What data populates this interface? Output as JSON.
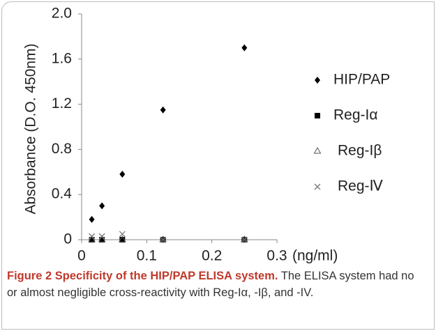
{
  "chart_data": {
    "type": "scatter",
    "y_label": "Absorbance  (D.O. 450nm)",
    "x_label": "(ng/ml)",
    "x": [
      0.015625,
      0.03125,
      0.0625,
      0.125,
      0.25
    ],
    "series": [
      {
        "name": "HIP/PAP",
        "color": "#000000",
        "marker": "diamond",
        "values": [
          0.18,
          0.3,
          0.58,
          1.15,
          1.7
        ]
      },
      {
        "name": "Reg-Iα",
        "color": "#000000",
        "marker": "square",
        "values": [
          0,
          0,
          0,
          0,
          0
        ]
      },
      {
        "name": "Reg-Iβ",
        "color": "#555555",
        "marker": "triangle",
        "values": [
          0,
          0,
          0,
          0,
          0
        ]
      },
      {
        "name": "Reg-Ⅳ",
        "color": "#777777",
        "marker": "x",
        "values": [
          0.03,
          0.03,
          0.05,
          0,
          0
        ]
      }
    ],
    "xlim": [
      0,
      0.3
    ],
    "ylim": [
      0,
      2
    ],
    "xticks": [
      0,
      0.1,
      0.2,
      0.3
    ],
    "yticks": [
      0,
      0.4,
      0.8,
      1.2,
      1.6,
      {
        "value": 2,
        "label": "2.0"
      }
    ]
  },
  "caption": {
    "label": "Figure 2 Specificity of the HIP/PAP ELISA system.",
    "text": "The ELISA system had no or almost negligible cross-reactivity with Reg-Iα, -Iβ, and -IV."
  }
}
